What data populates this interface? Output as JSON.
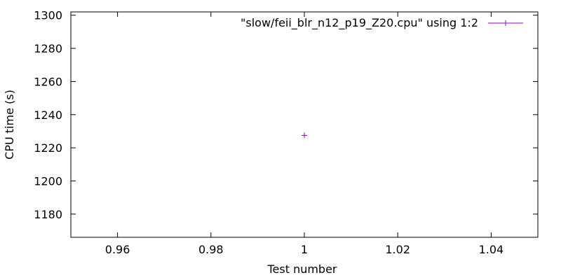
{
  "chart_data": {
    "type": "scatter",
    "title": "",
    "xlabel": "Test number",
    "ylabel": "CPU time (s)",
    "xlim": [
      0.95,
      1.05
    ],
    "ylim": [
      1166,
      1302
    ],
    "x_ticks": [
      0.96,
      0.98,
      1,
      1.02,
      1.04
    ],
    "x_tick_labels": [
      "0.96",
      "0.98",
      "1",
      "1.02",
      "1.04"
    ],
    "y_ticks": [
      1180,
      1200,
      1220,
      1240,
      1260,
      1280,
      1300
    ],
    "y_tick_labels": [
      "1180",
      "1200",
      "1220",
      "1240",
      "1260",
      "1280",
      "1300"
    ],
    "grid": false,
    "legend_position": "top-right",
    "series": [
      {
        "name": "\"slow/feii_blr_n12_p19_Z20.cpu\" using 1:2",
        "color": "#9400d3",
        "marker": "plus",
        "points": [
          {
            "x": 1,
            "y": 1227.5
          }
        ]
      }
    ]
  }
}
